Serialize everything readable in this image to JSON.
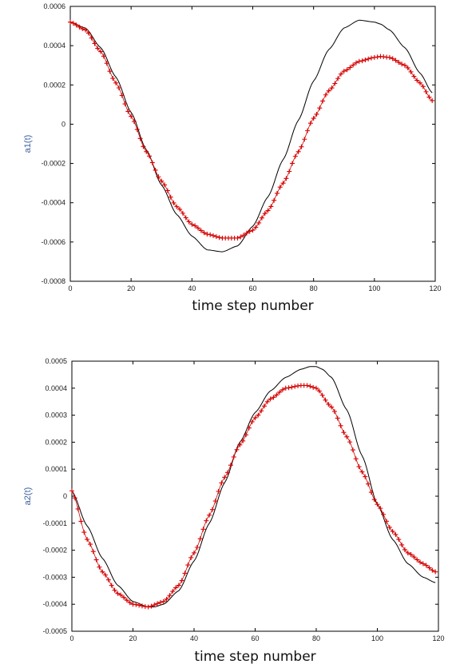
{
  "chart_data": [
    {
      "type": "line",
      "title": "",
      "xlabel": "time step number",
      "ylabel": "a1(t)",
      "xlim": [
        0,
        120
      ],
      "ylim": [
        -0.0008,
        0.0006
      ],
      "x_ticks": [
        0,
        20,
        40,
        60,
        80,
        100,
        120
      ],
      "x_tick_labels": [
        "0",
        "20",
        "40",
        "60",
        "80",
        "100",
        "120"
      ],
      "y_ticks": [
        0.0006,
        0.0004,
        0.0002,
        0,
        -0.0002,
        -0.0004,
        -0.0006,
        -0.0008
      ],
      "y_tick_labels": [
        "0.0006",
        "0.0004",
        "0.0002",
        "0",
        "-0.0002",
        "-0.0004",
        "-0.0006",
        "-0.0008"
      ],
      "grid": false,
      "series": [
        {
          "style": "line",
          "color": "#000000",
          "x": [
            0,
            5,
            10,
            15,
            20,
            25,
            30,
            35,
            40,
            45,
            50,
            55,
            60,
            65,
            70,
            75,
            80,
            85,
            90,
            95,
            100,
            102,
            105,
            110,
            115,
            119
          ],
          "y": [
            0.00052,
            0.00049,
            0.00039,
            0.00024,
            6e-05,
            -0.00013,
            -0.00031,
            -0.00046,
            -0.00057,
            -0.00064,
            -0.00065,
            -0.00062,
            -0.00052,
            -0.00037,
            -0.00018,
            2e-05,
            0.00022,
            0.00038,
            0.00049,
            0.00053,
            0.00052,
            0.00051,
            0.00048,
            0.00039,
            0.00026,
            0.00016
          ]
        },
        {
          "style": "markers",
          "marker": "+",
          "color": "#d40000",
          "x": [
            0,
            5,
            10,
            15,
            20,
            25,
            30,
            35,
            40,
            45,
            50,
            55,
            60,
            65,
            70,
            75,
            80,
            85,
            90,
            95,
            100,
            102,
            105,
            110,
            115,
            119
          ],
          "y": [
            0.00052,
            0.00048,
            0.00037,
            0.00021,
            4e-05,
            -0.00014,
            -0.00029,
            -0.00042,
            -0.00051,
            -0.00056,
            -0.00058,
            -0.00058,
            -0.00054,
            -0.00044,
            -0.0003,
            -0.00014,
            3e-05,
            0.00017,
            0.00027,
            0.00032,
            0.00034,
            0.000345,
            0.00034,
            0.0003,
            0.00021,
            0.00012
          ]
        }
      ]
    },
    {
      "type": "line",
      "title": "",
      "xlabel": "time step number",
      "ylabel": "a2(t)",
      "xlim": [
        0,
        120
      ],
      "ylim": [
        -0.0005,
        0.0005
      ],
      "x_ticks": [
        0,
        20,
        40,
        60,
        80,
        100,
        120
      ],
      "x_tick_labels": [
        "0",
        "20",
        "40",
        "60",
        "80",
        "100",
        "120"
      ],
      "y_ticks": [
        0.0005,
        0.0004,
        0.0003,
        0.0002,
        0.0001,
        0,
        -0.0001,
        -0.0002,
        -0.0003,
        -0.0004,
        -0.0005
      ],
      "y_tick_labels": [
        "0.0005",
        "0.0004",
        "0.0003",
        "0.0002",
        "0.0001",
        "0",
        "-0.0001",
        "-0.0002",
        "-0.0003",
        "-0.0004",
        "-0.0005"
      ],
      "grid": false,
      "series": [
        {
          "style": "line",
          "color": "#000000",
          "x": [
            0,
            5,
            10,
            15,
            20,
            25,
            27,
            30,
            35,
            40,
            45,
            50,
            55,
            60,
            65,
            70,
            75,
            78,
            80,
            82,
            85,
            90,
            95,
            100,
            105,
            110,
            115,
            119
          ],
          "y": [
            2e-05,
            -0.00011,
            -0.00023,
            -0.00033,
            -0.00039,
            -0.00041,
            -0.00041,
            -0.0004,
            -0.00035,
            -0.00024,
            -0.0001,
            5e-05,
            0.0002,
            0.00031,
            0.00039,
            0.00044,
            0.00047,
            0.00048,
            0.00048,
            0.00047,
            0.00044,
            0.00032,
            0.00015,
            -3e-05,
            -0.00016,
            -0.00025,
            -0.0003,
            -0.00032
          ]
        },
        {
          "style": "markers",
          "marker": "+",
          "color": "#d40000",
          "x": [
            0,
            5,
            10,
            15,
            20,
            25,
            30,
            35,
            40,
            45,
            50,
            55,
            60,
            65,
            70,
            75,
            77,
            80,
            85,
            90,
            95,
            100,
            105,
            110,
            115,
            119
          ],
          "y": [
            2e-05,
            -0.00016,
            -0.00028,
            -0.00036,
            -0.0004,
            -0.00041,
            -0.00039,
            -0.00033,
            -0.00021,
            -7e-05,
            7e-05,
            0.00019,
            0.00029,
            0.00036,
            0.0004,
            0.00041,
            0.00041,
            0.0004,
            0.00033,
            0.00022,
            9e-05,
            -3e-05,
            -0.00013,
            -0.00021,
            -0.00025,
            -0.00028
          ]
        }
      ]
    }
  ]
}
